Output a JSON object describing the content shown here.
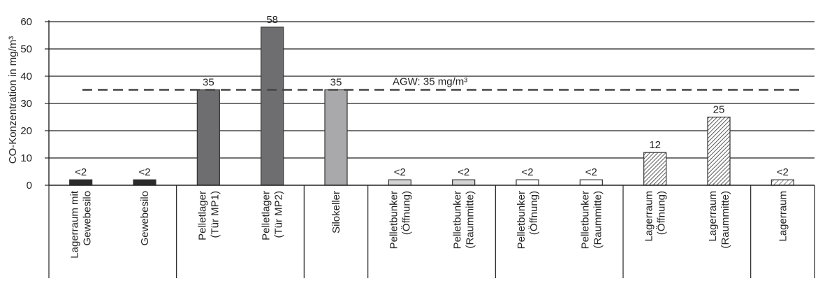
{
  "chart_data": {
    "type": "bar",
    "ylabel": "CO-Konzentration in mg/m³",
    "ylim": [
      0,
      60
    ],
    "yticks": [
      "0",
      "10",
      "20",
      "30",
      "40",
      "50",
      "60"
    ],
    "grid": true,
    "categories": [
      [
        "Lagerraum mit",
        "Gewebesilo"
      ],
      [
        "Gewebesilo"
      ],
      [
        "Pelletlager",
        "(Tür MP1)"
      ],
      [
        "Pelletlager",
        "(Tür MP2)"
      ],
      [
        "Silokeller"
      ],
      [
        "Pelletbunker",
        "(Öffnung)"
      ],
      [
        "Pelletbunker",
        "(Raummitte)"
      ],
      [
        "Pelletbunker",
        "(Öffnung)"
      ],
      [
        "Pelletbunker",
        "(Raummitte)"
      ],
      [
        "Lagerraum",
        "(Öffnung)"
      ],
      [
        "Lagerraum",
        "(Raummitte)"
      ],
      [
        "Lagerraum"
      ]
    ],
    "values": [
      2,
      2,
      35,
      58,
      35,
      2,
      2,
      2,
      2,
      12,
      25,
      2
    ],
    "value_labels": [
      "<2",
      "<2",
      "35",
      "58",
      "35",
      "<2",
      "<2",
      "<2",
      "<2",
      "12",
      "25",
      "<2"
    ],
    "bar_styles": [
      "dark",
      "dark",
      "darkgray",
      "darkgray",
      "midgray",
      "lightgray",
      "lightgray",
      "white",
      "white",
      "hatch",
      "hatch",
      "hatch-fine"
    ],
    "colors": {
      "dark": "#2b2b2b",
      "darkgray": "#6e6e70",
      "midgray": "#a9a9ab",
      "lightgray": "#d4d4d4",
      "white": "#ffffff",
      "outline": "#333333"
    },
    "groups": [
      {
        "start": 0,
        "end": 1
      },
      {
        "start": 2,
        "end": 3
      },
      {
        "start": 4,
        "end": 4
      },
      {
        "start": 5,
        "end": 6
      },
      {
        "start": 7,
        "end": 8
      },
      {
        "start": 9,
        "end": 10
      },
      {
        "start": 11,
        "end": 11
      }
    ],
    "reference_line": {
      "value": 35,
      "label": "AGW: 35 mg/m³",
      "style": "dashed"
    }
  }
}
